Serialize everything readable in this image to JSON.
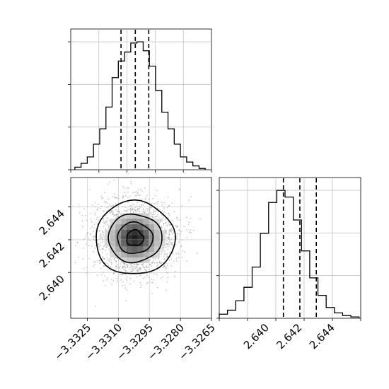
{
  "chart_data": [
    {
      "type": "histogram",
      "panel": "top-left",
      "parameter_index": 0,
      "bins": [
        -3.3331,
        -3.3328,
        -3.3325,
        -3.3322,
        -3.3319,
        -3.3316,
        -3.3313,
        -3.331,
        -3.3307,
        -3.3304,
        -3.3301,
        -3.3298,
        -3.3295,
        -3.3292,
        -3.3289,
        -3.3286,
        -3.3283,
        -3.328,
        -3.3277,
        -3.3274,
        -3.3271,
        -3.3268
      ],
      "counts": [
        2,
        5,
        10,
        20,
        32,
        49,
        72,
        85,
        92,
        99,
        100,
        93,
        81,
        62,
        45,
        32,
        20,
        10,
        6,
        3,
        1
      ],
      "quantiles": {
        "q16": -3.33087,
        "q50": -3.33018,
        "q84": -3.32953
      },
      "xlim": [
        -3.3333,
        -3.3265
      ],
      "grid": true,
      "y_ticks_labeled": false
    },
    {
      "type": "histogram",
      "panel": "bottom-right",
      "parameter_index": 1,
      "bins": [
        2.6372,
        2.6377,
        2.6382,
        2.6387,
        2.6392,
        2.6397,
        2.6402,
        2.6407,
        2.6412,
        2.6417,
        2.6422,
        2.6427,
        2.6432,
        2.6437,
        2.6442,
        2.6447,
        2.6452,
        2.6457
      ],
      "counts": [
        3,
        6,
        13,
        23,
        38,
        63,
        86,
        95,
        90,
        73,
        50,
        30,
        17,
        8,
        4,
        2,
        1
      ],
      "quantiles": {
        "q16": 2.6411,
        "q50": 2.6421,
        "q84": 2.6431
      },
      "xlim": [
        2.6372,
        2.6458
      ],
      "xticks": [
        "2.640",
        "2.642",
        "2.644"
      ],
      "grid": true,
      "y_ticks_labeled": false
    },
    {
      "type": "heatmap",
      "panel": "bottom-left",
      "kind": "2d-density-with-contours",
      "xlim": [
        -3.3333,
        -3.3265
      ],
      "ylim": [
        2.6372,
        2.6458
      ],
      "center": {
        "x": -3.3302,
        "y": 2.6421
      },
      "xticks": [
        "−3.3325",
        "−3.3310",
        "−3.3295",
        "−3.3280",
        "−3.3265"
      ],
      "yticks": [
        "2.640",
        "2.642",
        "2.644"
      ],
      "grid": true
    }
  ],
  "colors": {
    "line": "#000000",
    "grid": "#b0b0b0",
    "points": "#9a9a9a",
    "background": "#ffffff"
  }
}
